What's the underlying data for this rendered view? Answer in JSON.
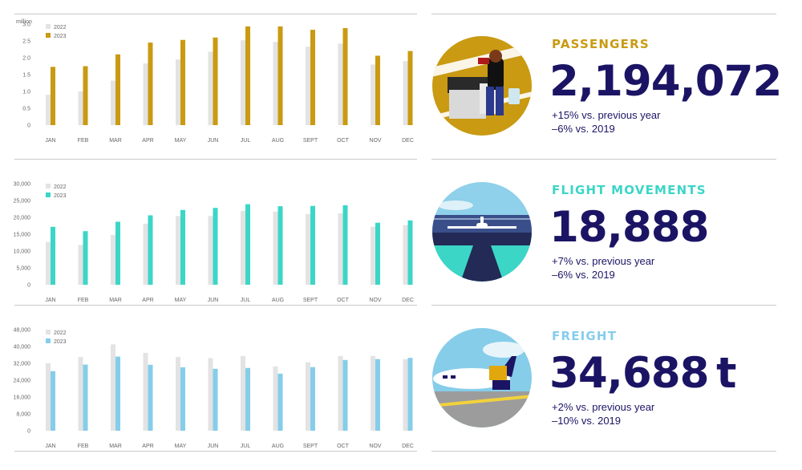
{
  "colors": {
    "prev_year": "#e3e3e3",
    "passengers": "#c99a12",
    "flights": "#3cd6c7",
    "freight": "#86cdea",
    "navy": "#1b1464",
    "axis_text": "#666666"
  },
  "panels": [
    {
      "id": "passengers",
      "title": "PASSENGERS",
      "title_color": "#c99a12",
      "value": "2,194,072",
      "line1": "+15% vs. previous year",
      "line2": "–6% vs. 2019",
      "icon": "passenger-lounge-illustration",
      "chart_data": {
        "type": "bar",
        "unit_label": "million",
        "categories": [
          "JAN",
          "FEB",
          "MAR",
          "APR",
          "MAY",
          "JUN",
          "JUL",
          "AUG",
          "SEPT",
          "OCT",
          "NOV",
          "DEC"
        ],
        "series": [
          {
            "name": "2022",
            "color": "#e3e3e3",
            "values": [
              0.9,
              1.0,
              1.32,
              1.83,
              1.95,
              2.18,
              2.52,
              2.47,
              2.33,
              2.42,
              1.8,
              1.9
            ]
          },
          {
            "name": "2023",
            "color": "#c99a12",
            "values": [
              1.73,
              1.75,
              2.1,
              2.45,
              2.53,
              2.6,
              2.93,
              2.93,
              2.83,
              2.88,
              2.06,
              2.2
            ]
          }
        ],
        "yticks": [
          "0",
          "0.5",
          "1.0",
          "1.5",
          "2.0",
          "2.5",
          "3.0"
        ],
        "ytick_values": [
          0,
          0.5,
          1.0,
          1.5,
          2.0,
          2.5,
          3.0
        ],
        "ylim": [
          0,
          3.0
        ],
        "legend": "top-left"
      }
    },
    {
      "id": "flights",
      "title": "FLIGHT MOVEMENTS",
      "title_color": "#3cd6c7",
      "value": "18,888",
      "line1": "+7% vs. previous year",
      "line2": "–6% vs. 2019",
      "icon": "runway-airplane-illustration",
      "chart_data": {
        "type": "bar",
        "unit_label": "",
        "categories": [
          "JAN",
          "FEB",
          "MAR",
          "APR",
          "MAY",
          "JUN",
          "JUL",
          "AUG",
          "SEPT",
          "OCT",
          "NOV",
          "DEC"
        ],
        "series": [
          {
            "name": "2022",
            "color": "#e3e3e3",
            "values": [
              12700,
              11800,
              14800,
              18100,
              20400,
              20400,
              21900,
              21700,
              21000,
              21200,
              17200,
              17700
            ]
          },
          {
            "name": "2023",
            "color": "#3cd6c7",
            "values": [
              17200,
              15900,
              18700,
              20600,
              22200,
              22800,
              23900,
              23300,
              23400,
              23600,
              18400,
              19100
            ]
          }
        ],
        "yticks": [
          "0",
          "5,000",
          "10,000",
          "15,000",
          "20,000",
          "25,000",
          "30,000"
        ],
        "ytick_values": [
          0,
          5000,
          10000,
          15000,
          20000,
          25000,
          30000
        ],
        "ylim": [
          0,
          30000
        ],
        "legend": "top-left"
      }
    },
    {
      "id": "freight",
      "title": "FREIGHT",
      "title_color": "#86cdea",
      "value": "34,688 t",
      "line1": "+2% vs. previous year",
      "line2": "–10% vs. 2019",
      "icon": "cargo-airplane-illustration",
      "chart_data": {
        "type": "bar",
        "unit_label": "",
        "categories": [
          "JAN",
          "FEB",
          "MAR",
          "APR",
          "MAY",
          "JUN",
          "JUL",
          "AUG",
          "SEPT",
          "OCT",
          "NOV",
          "DEC"
        ],
        "series": [
          {
            "name": "2022",
            "color": "#e3e3e3",
            "values": [
              32000,
              35000,
              41000,
              37000,
              35000,
              34500,
              35500,
              30500,
              32500,
              35500,
              35500,
              34000
            ]
          },
          {
            "name": "2023",
            "color": "#86cdea",
            "values": [
              28300,
              31400,
              35200,
              31300,
              30100,
              29400,
              29800,
              27100,
              30200,
              33600,
              34000,
              34600
            ]
          }
        ],
        "yticks": [
          "0",
          "8,000",
          "16,000",
          "24,000",
          "32,000",
          "40,000",
          "48,000"
        ],
        "ytick_values": [
          0,
          8000,
          16000,
          24000,
          32000,
          40000,
          48000
        ],
        "ylim": [
          0,
          48000
        ],
        "legend": "top-left"
      }
    }
  ]
}
